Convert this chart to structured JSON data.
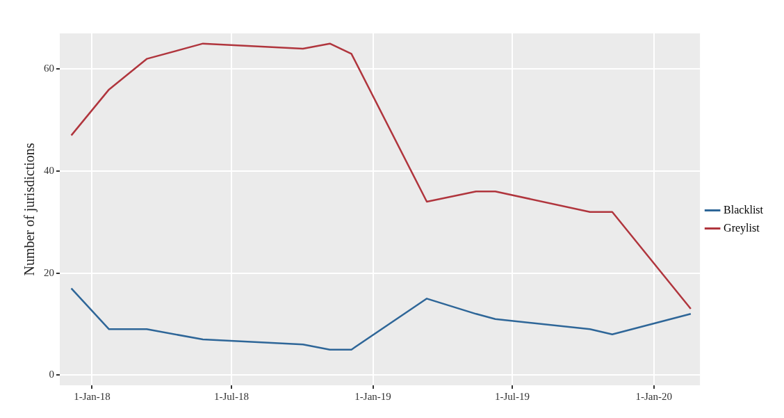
{
  "chart_data": {
    "type": "line",
    "ylabel": "Number of jurisdictions",
    "x": [
      "2017-12-05",
      "2018-01-23",
      "2018-03-13",
      "2018-05-25",
      "2018-10-02",
      "2018-11-06",
      "2018-12-04",
      "2019-03-12",
      "2019-05-15",
      "2019-06-09",
      "2019-10-10",
      "2019-11-08",
      "2020-02-18"
    ],
    "series": [
      {
        "name": "Blacklist",
        "color": "#2e6698",
        "values": [
          17,
          9,
          9,
          7,
          6,
          5,
          5,
          15,
          12,
          11,
          9,
          8,
          12
        ]
      },
      {
        "name": "Greylist",
        "color": "#b0353d",
        "values": [
          47,
          56,
          62,
          65,
          64,
          65,
          63,
          34,
          36,
          36,
          32,
          32,
          13
        ]
      }
    ],
    "xlim": [
      "2017-11-20",
      "2020-03-01"
    ],
    "xticks": [
      {
        "value": "2018-01-01",
        "label": "1-Jan-18"
      },
      {
        "value": "2018-07-01",
        "label": "1-Jul-18"
      },
      {
        "value": "2019-01-01",
        "label": "1-Jan-19"
      },
      {
        "value": "2019-07-01",
        "label": "1-Jul-19"
      },
      {
        "value": "2020-01-01",
        "label": "1-Jan-20"
      }
    ],
    "ylim": [
      -2,
      67
    ],
    "yticks": [
      0,
      20,
      40,
      60
    ],
    "grid": true,
    "legend": "right",
    "marker": "none",
    "line_style": "solid"
  }
}
